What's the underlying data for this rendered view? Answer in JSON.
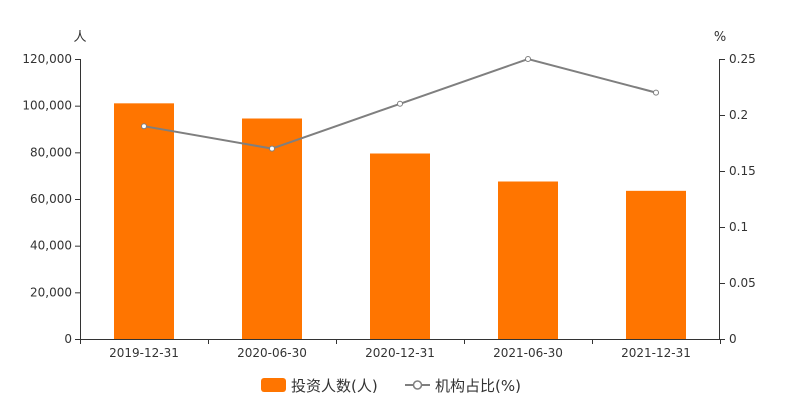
{
  "chart_data": {
    "type": "bar",
    "categories": [
      "2019-12-31",
      "2020-06-30",
      "2020-12-31",
      "2021-06-30",
      "2021-12-31"
    ],
    "series": [
      {
        "name": "投资人数(人)",
        "type": "bar",
        "axis": "left",
        "color": "#ff7500",
        "values": [
          101000,
          94500,
          79500,
          67500,
          63500
        ]
      },
      {
        "name": "机构占比(%)",
        "type": "line",
        "axis": "right",
        "color": "#7f7f7f",
        "values": [
          0.19,
          0.17,
          0.21,
          0.25,
          0.22
        ]
      }
    ],
    "y_left": {
      "unit": "人",
      "ylim": [
        0,
        120000
      ],
      "ticks": [
        "0",
        "20,000",
        "40,000",
        "60,000",
        "80,000",
        "100,000",
        "120,000"
      ]
    },
    "y_right": {
      "unit": "%",
      "ylim": [
        0,
        0.25
      ],
      "ticks": [
        "0",
        "0.05",
        "0.1",
        "0.15",
        "0.2",
        "0.25"
      ]
    },
    "grid": false,
    "legend": "bottom-center"
  }
}
